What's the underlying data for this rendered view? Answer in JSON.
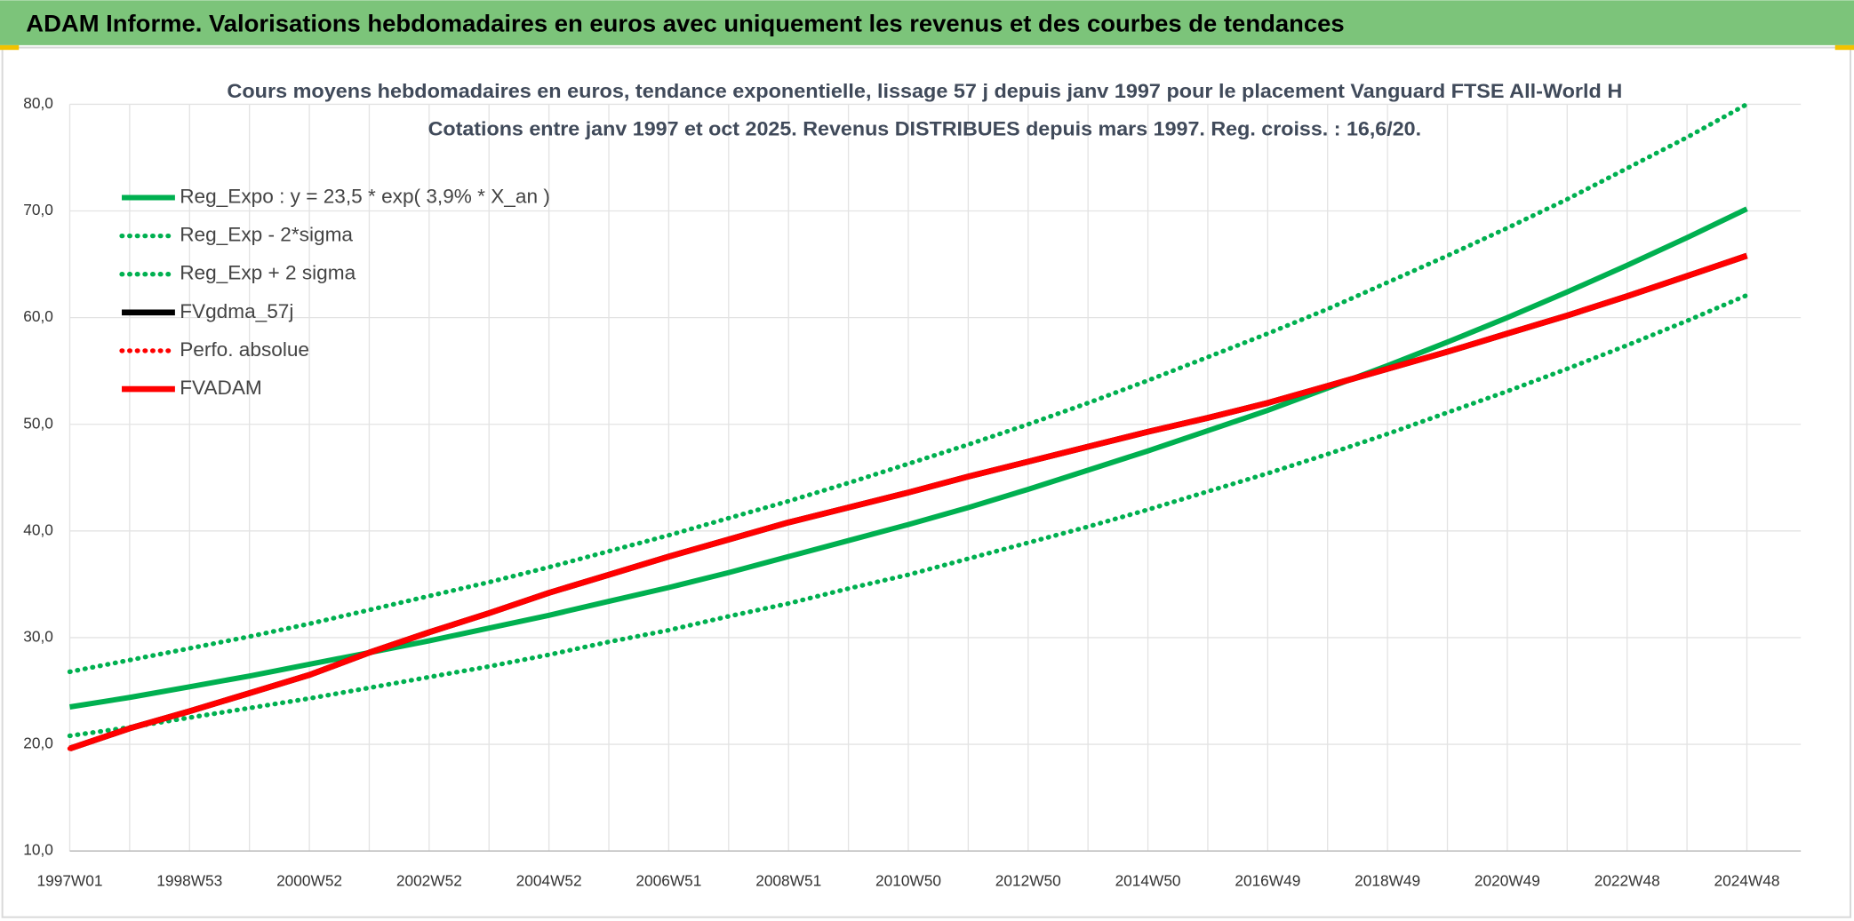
{
  "header": {
    "title": "ADAM Informe. Valorisations hebdomadaires en euros avec uniquement les revenus et des courbes de tendances"
  },
  "chart_data": {
    "type": "line",
    "title": "Cours moyens hebdomadaires en euros, tendance exponentielle, lissage 57 j depuis janv 1997 pour le placement Vanguard FTSE All-World H",
    "subtitle": "Cotations entre janv 1997 et oct 2025. Revenus DISTRIBUES depuis mars 1997. Reg. croiss. : 16,6/20.",
    "categories": [
      "1997W01",
      null,
      "1998W53",
      null,
      "2000W52",
      null,
      "2002W52",
      null,
      "2004W52",
      null,
      "2006W51",
      null,
      "2008W51",
      null,
      "2010W50",
      null,
      "2012W50",
      null,
      "2014W50",
      null,
      "2016W49",
      null,
      "2018W49",
      null,
      "2020W49",
      null,
      "2022W48",
      null,
      "2024W48"
    ],
    "xlim": [
      0,
      28.9
    ],
    "ylim": [
      10,
      80
    ],
    "yticks": [
      {
        "value": 10,
        "label": "10,0"
      },
      {
        "value": 20,
        "label": "20,0"
      },
      {
        "value": 30,
        "label": "30,0"
      },
      {
        "value": 40,
        "label": "40,0"
      },
      {
        "value": 50,
        "label": "50,0"
      },
      {
        "value": 60,
        "label": "60,0"
      },
      {
        "value": 70,
        "label": "70,0"
      },
      {
        "value": 80,
        "label": "80,0"
      }
    ],
    "grid": true,
    "legend": "upper left",
    "series": [
      {
        "name": "Reg_Expo : y = 23,5 * exp( 3,9% *  X_an )",
        "color": "#00b050",
        "dash": "solid",
        "values": [
          23.5,
          24.4,
          25.4,
          26.4,
          27.5,
          28.6,
          29.7,
          30.9,
          32.1,
          33.4,
          34.7,
          36.1,
          37.6,
          39.1,
          40.6,
          42.2,
          43.9,
          45.7,
          47.5,
          49.4,
          51.3,
          53.4,
          55.5,
          57.7,
          60.0,
          62.4,
          64.9,
          67.5,
          70.2
        ]
      },
      {
        "name": "Reg_Exp - 2*sigma",
        "color": "#00b050",
        "dash": "dotted",
        "values": [
          20.8,
          21.6,
          22.5,
          23.4,
          24.3,
          25.3,
          26.3,
          27.3,
          28.4,
          29.6,
          30.7,
          32.0,
          33.2,
          34.6,
          35.9,
          37.4,
          38.9,
          40.4,
          42.0,
          43.7,
          45.4,
          47.2,
          49.1,
          51.1,
          53.1,
          55.2,
          57.4,
          59.7,
          62.1
        ]
      },
      {
        "name": "Reg_Exp + 2 sigma",
        "color": "#00b050",
        "dash": "dotted",
        "values": [
          26.8,
          27.9,
          29.0,
          30.1,
          31.3,
          32.6,
          33.9,
          35.2,
          36.6,
          38.1,
          39.6,
          41.2,
          42.8,
          44.5,
          46.3,
          48.1,
          50.0,
          52.0,
          54.1,
          56.3,
          58.5,
          60.8,
          63.3,
          65.8,
          68.4,
          71.1,
          74.0,
          76.9,
          80.0
        ]
      },
      {
        "name": "FVgdma_57j",
        "color": "#000000",
        "dash": "solid",
        "values": [
          19.6,
          21.5,
          23.1,
          24.8,
          26.5,
          28.6,
          30.5,
          32.3,
          34.2,
          35.9,
          37.6,
          39.2,
          40.8,
          42.2,
          43.6,
          45.1,
          46.5,
          47.9,
          49.3,
          50.6,
          52.0,
          53.6,
          55.2,
          56.8,
          58.5,
          60.2,
          62.0,
          63.9,
          65.8
        ]
      },
      {
        "name": "Perfo. absolue",
        "color": "#ff0000",
        "dash": "dotted",
        "values": [
          19.6,
          21.5,
          23.1,
          24.8,
          26.5,
          28.6,
          30.5,
          32.3,
          34.2,
          35.9,
          37.6,
          39.2,
          40.8,
          42.2,
          43.6,
          45.1,
          46.5,
          47.9,
          49.3,
          50.6,
          52.0,
          53.6,
          55.2,
          56.8,
          58.5,
          60.2,
          62.0,
          63.9,
          65.8
        ]
      },
      {
        "name": "FVADAM",
        "color": "#ff0000",
        "dash": "solid",
        "values": [
          19.6,
          21.5,
          23.1,
          24.8,
          26.5,
          28.6,
          30.5,
          32.3,
          34.2,
          35.9,
          37.6,
          39.2,
          40.8,
          42.2,
          43.6,
          45.1,
          46.5,
          47.9,
          49.3,
          50.6,
          52.0,
          53.6,
          55.2,
          56.8,
          58.5,
          60.2,
          62.0,
          63.9,
          65.8
        ]
      }
    ]
  }
}
